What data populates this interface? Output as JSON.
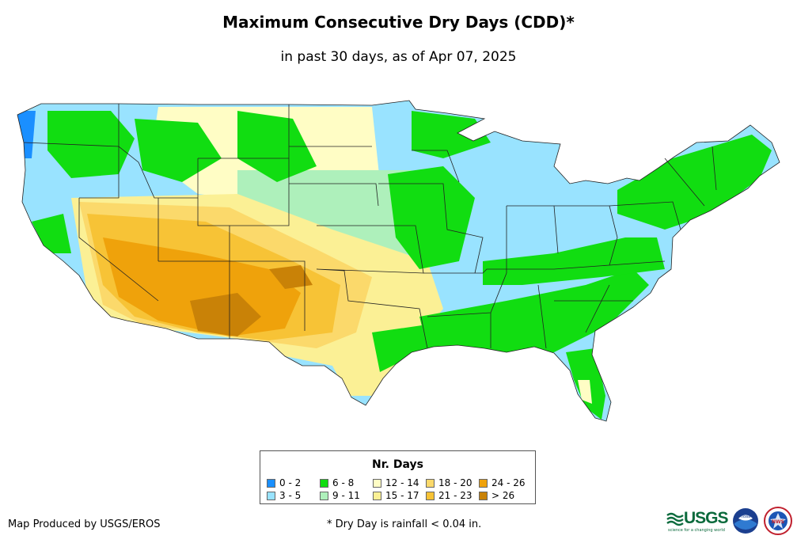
{
  "title": "Maximum Consecutive Dry Days (CDD)*",
  "subtitle": "in past 30 days, as of Apr 07, 2025",
  "legend": {
    "title": "Nr. Days",
    "items": [
      {
        "label": "0 - 2",
        "color": "#1a8fff"
      },
      {
        "label": "3 - 5",
        "color": "#99e3ff"
      },
      {
        "label": "6 - 8",
        "color": "#11dd11"
      },
      {
        "label": "9 - 11",
        "color": "#aef0bb"
      },
      {
        "label": "12 - 14",
        "color": "#fffdc5"
      },
      {
        "label": "15 - 17",
        "color": "#fbf095"
      },
      {
        "label": "18 - 20",
        "color": "#fbd96b"
      },
      {
        "label": "21 - 23",
        "color": "#f7c336"
      },
      {
        "label": "24 - 26",
        "color": "#efa20b"
      },
      {
        "label": "> 26",
        "color": "#c98207"
      }
    ]
  },
  "credit": "Map Produced by USGS/EROS",
  "footnote": "* Dry Day is rainfall < 0.04 in.",
  "logos": {
    "usgs": "USGS",
    "usgs_tagline": "science for a changing world",
    "noaa": "noaa",
    "nws": "NWS"
  }
}
